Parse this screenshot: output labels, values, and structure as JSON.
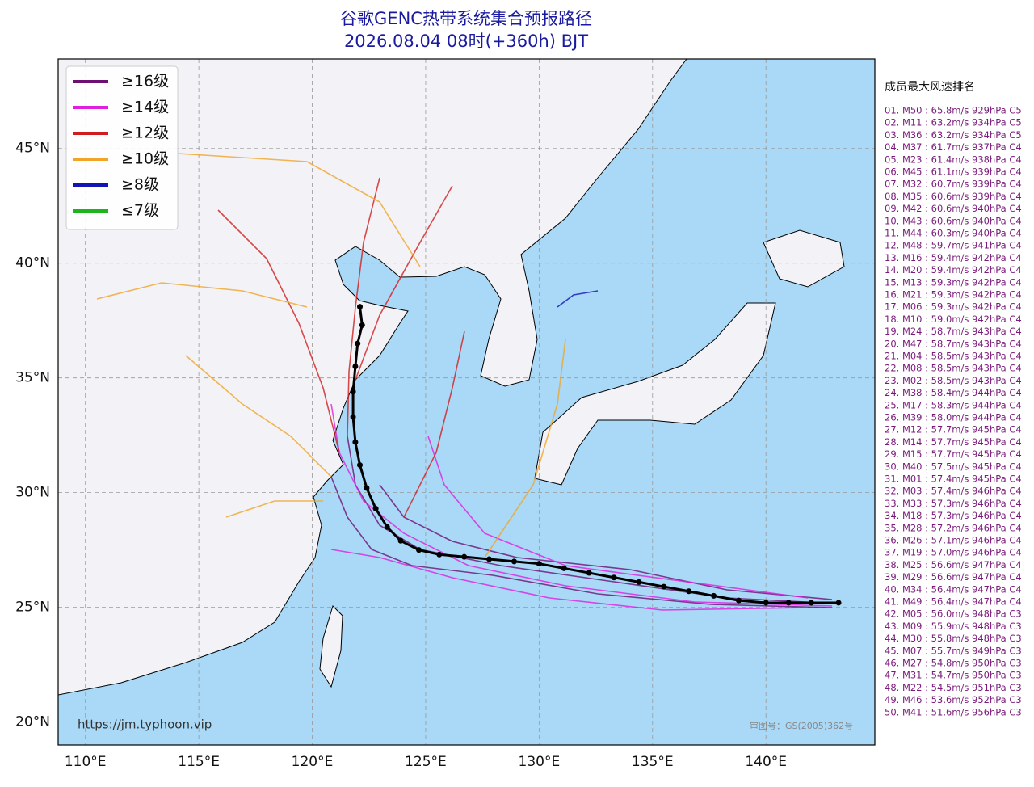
{
  "map": {
    "title": "谷歌GENC热带系统集合预报路径",
    "subtitle": "2026.08.04 08时(+360h) BJT",
    "lonlim": [
      108.8,
      144.8
    ],
    "latlim": [
      19,
      48.9
    ],
    "lonticks": [
      {
        "value": 110,
        "label": "110°E"
      },
      {
        "value": 115,
        "label": "115°E"
      },
      {
        "value": 120,
        "label": "120°E"
      },
      {
        "value": 125,
        "label": "125°E"
      },
      {
        "value": 130,
        "label": "130°E"
      },
      {
        "value": 135,
        "label": "135°E"
      },
      {
        "value": 140,
        "label": "140°E"
      }
    ],
    "latticks": [
      {
        "value": 20,
        "label": "20°N"
      },
      {
        "value": 25,
        "label": "25°N"
      },
      {
        "value": 30,
        "label": "30°N"
      },
      {
        "value": 35,
        "label": "35°N"
      },
      {
        "value": 40,
        "label": "40°N"
      },
      {
        "value": 45,
        "label": "45°N"
      }
    ],
    "legend": [
      {
        "label": "≥16级",
        "color": "#6e0f73"
      },
      {
        "label": "≥14级",
        "color": "#e01ee0"
      },
      {
        "label": "≥12级",
        "color": "#d01e1e"
      },
      {
        "label": "≥10级",
        "color": "#f0a428"
      },
      {
        "label": "≥8级",
        "color": "#1414b4"
      },
      {
        "label": "≤7级",
        "color": "#1eb41e"
      }
    ],
    "mean_track": {
      "lon": [
        143.2,
        142,
        141,
        140,
        138.8,
        137.7,
        136.6,
        135.5,
        134.4,
        133.3,
        132.2,
        131.1,
        130,
        128.9,
        127.8,
        126.7,
        125.6,
        124.7,
        123.9,
        123.3,
        122.8,
        122.4,
        122.1,
        121.9,
        121.8,
        121.8,
        121.9,
        122,
        122.2,
        122.1
      ],
      "lat": [
        25.2,
        25.2,
        25.2,
        25.2,
        25.3,
        25.5,
        25.7,
        25.9,
        26.1,
        26.3,
        26.5,
        26.7,
        26.9,
        27,
        27.1,
        27.2,
        27.3,
        27.5,
        27.9,
        28.5,
        29.3,
        30.2,
        31.2,
        32.2,
        33.3,
        34.4,
        35.5,
        36.5,
        37.3,
        38.1
      ]
    },
    "ranking": {
      "title": "成员最大风速排名",
      "items": [
        "01. M50 : 65.8m/s 929hPa C5",
        "02. M11 : 63.2m/s 934hPa C5",
        "03. M36 : 63.2m/s 934hPa C5",
        "04. M37 : 61.7m/s 937hPa C4",
        "05. M23 : 61.4m/s 938hPa C4",
        "06. M45 : 61.1m/s 939hPa C4",
        "07. M32 : 60.7m/s 939hPa C4",
        "08. M35 : 60.6m/s 939hPa C4",
        "09. M42 : 60.6m/s 940hPa C4",
        "10. M43 : 60.6m/s 940hPa C4",
        "11. M44 : 60.3m/s 940hPa C4",
        "12. M48 : 59.7m/s 941hPa C4",
        "13. M16 : 59.4m/s 942hPa C4",
        "14. M20 : 59.4m/s 942hPa C4",
        "15. M13 : 59.3m/s 942hPa C4",
        "16. M21 : 59.3m/s 942hPa C4",
        "17. M06 : 59.3m/s 942hPa C4",
        "18. M10 : 59.0m/s 942hPa C4",
        "19. M24 : 58.7m/s 943hPa C4",
        "20. M47 : 58.7m/s 943hPa C4",
        "21. M04 : 58.5m/s 943hPa C4",
        "22. M08 : 58.5m/s 943hPa C4",
        "23. M02 : 58.5m/s 943hPa C4",
        "24. M38 : 58.4m/s 944hPa C4",
        "25. M17 : 58.3m/s 944hPa C4",
        "26. M39 : 58.0m/s 944hPa C4",
        "27. M12 : 57.7m/s 945hPa C4",
        "28. M14 : 57.7m/s 945hPa C4",
        "29. M15 : 57.7m/s 945hPa C4",
        "30. M40 : 57.5m/s 945hPa C4",
        "31. M01 : 57.4m/s 945hPa C4",
        "32. M03 : 57.4m/s 946hPa C4",
        "33. M33 : 57.3m/s 946hPa C4",
        "34. M18 : 57.3m/s 946hPa C4",
        "35. M28 : 57.2m/s 946hPa C4",
        "36. M26 : 57.1m/s 946hPa C4",
        "37. M19 : 57.0m/s 946hPa C4",
        "38. M25 : 56.6m/s 947hPa C4",
        "39. M29 : 56.6m/s 947hPa C4",
        "40. M34 : 56.4m/s 947hPa C4",
        "41. M49 : 56.4m/s 947hPa C4",
        "42. M05 : 56.0m/s 948hPa C3",
        "43. M09 : 55.9m/s 948hPa C3",
        "44. M30 : 55.8m/s 948hPa C3",
        "45. M07 : 55.7m/s 949hPa C3",
        "46. M27 : 54.8m/s 950hPa C3",
        "47. M31 : 54.7m/s 950hPa C3",
        "48. M22 : 54.5m/s 951hPa C3",
        "49. M46 : 53.6m/s 952hPa C3",
        "50. M41 : 51.6m/s 956hPa C3"
      ]
    },
    "source_url": "https://jm.typhoon.vip",
    "map_number": "审图号：GS(2005)362号"
  }
}
